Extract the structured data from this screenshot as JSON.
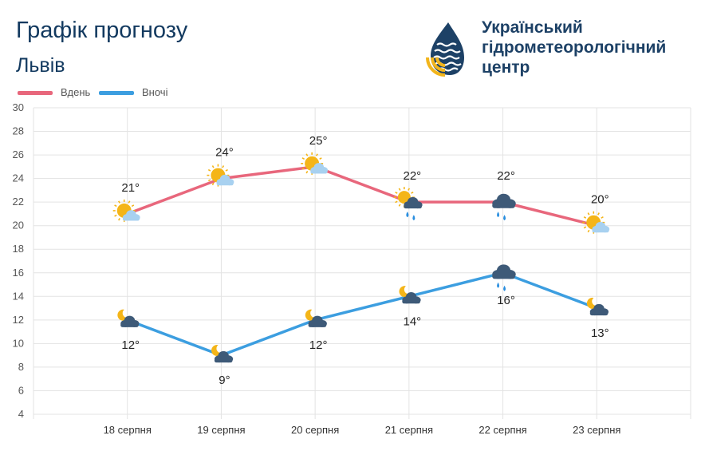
{
  "header": {
    "title": "Графік прогнозу",
    "city": "Львів"
  },
  "brand": {
    "line1": "Український",
    "line2": "гідрометеорологічний",
    "line3": "центр",
    "colors": {
      "dark": "#1d4166",
      "accent": "#f2b51c"
    }
  },
  "legend": {
    "day_label": "Вдень",
    "night_label": "Вночі"
  },
  "colors": {
    "day": "#e8677c",
    "night": "#3c9ee0",
    "grid": "#e3e3e3",
    "sun": "#f4b518",
    "cloud_light": "#a8d1f0",
    "cloud_dark": "#3e5a78",
    "rain": "#2a8fe0"
  },
  "chart_data": {
    "type": "line",
    "categories": [
      "18 серпня",
      "19 серпня",
      "20 серпня",
      "21 серпня",
      "22 серпня",
      "23 серпня"
    ],
    "series": [
      {
        "name": "Вдень",
        "values": [
          21,
          24,
          25,
          22,
          22,
          20
        ],
        "labels": [
          "21°",
          "24°",
          "25°",
          "22°",
          "22°",
          "20°"
        ],
        "icons": [
          "sun-cloud-icon",
          "sun-cloud-icon",
          "sun-cloud-icon",
          "sun-cloud-rain-icon",
          "cloud-rain-icon",
          "sun-cloud-icon"
        ]
      },
      {
        "name": "Вночі",
        "values": [
          12,
          9,
          12,
          14,
          16,
          13
        ],
        "labels": [
          "12°",
          "9°",
          "12°",
          "14°",
          "16°",
          "13°"
        ],
        "icons": [
          "moon-cloud-icon",
          "moon-cloud-icon",
          "moon-cloud-icon",
          "moon-cloud-icon",
          "cloud-rain-icon",
          "moon-cloud-icon"
        ]
      }
    ],
    "yticks": [
      "4",
      "6",
      "8",
      "10",
      "12",
      "14",
      "16",
      "18",
      "20",
      "22",
      "24",
      "26",
      "28",
      "30"
    ],
    "ylim": [
      4,
      30
    ],
    "grid": true,
    "legend_position": "top-left"
  }
}
